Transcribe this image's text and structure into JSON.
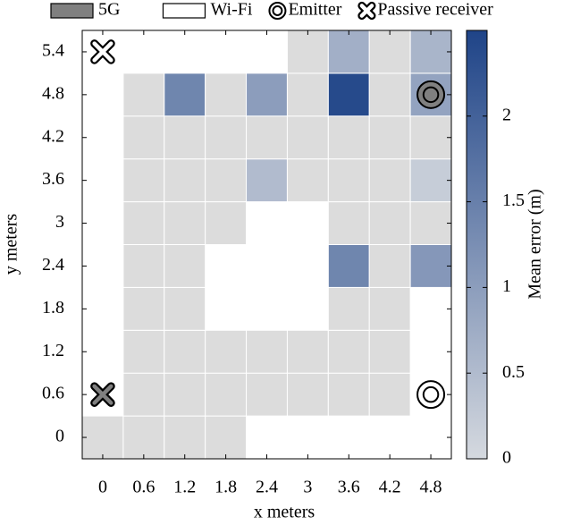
{
  "chart_data": {
    "type": "heatmap",
    "x": [
      0,
      0.6,
      1.2,
      1.8,
      2.4,
      3,
      3.6,
      4.2,
      4.8
    ],
    "y": [
      0,
      0.6,
      1.2,
      1.8,
      2.4,
      3,
      3.6,
      4.2,
      4.8,
      5.4
    ],
    "values": [
      [
        0,
        0,
        0,
        0,
        null,
        null,
        null,
        null,
        null
      ],
      [
        null,
        0,
        0,
        0,
        0,
        0,
        0,
        0,
        null
      ],
      [
        null,
        0,
        0,
        0,
        0,
        0,
        0,
        0,
        null
      ],
      [
        null,
        0,
        0,
        null,
        null,
        null,
        0,
        0,
        null
      ],
      [
        null,
        0,
        0,
        null,
        null,
        null,
        1.4,
        0,
        1.1
      ],
      [
        null,
        0,
        0,
        0,
        null,
        null,
        0,
        0,
        0
      ],
      [
        null,
        0,
        0,
        0,
        0.5,
        0,
        0,
        0,
        0.2
      ],
      [
        null,
        0,
        0,
        0,
        0,
        0,
        0,
        0,
        0
      ],
      [
        null,
        0,
        1.4,
        0,
        1.0,
        0,
        2.4,
        0,
        0.9
      ],
      [
        null,
        null,
        null,
        null,
        null,
        0,
        0.7,
        0,
        0.6
      ]
    ],
    "colormap": [
      "#d5d9df",
      "#1f4488"
    ],
    "xlabel": "x meters",
    "ylabel": "y meters",
    "xlim": [
      -0.3,
      5.1
    ],
    "ylim": [
      -0.3,
      5.7
    ],
    "xticks": [
      0,
      0.6,
      1.2,
      1.8,
      2.4,
      3,
      3.6,
      4.2,
      4.8
    ],
    "yticks": [
      0,
      0.6,
      1.2,
      1.8,
      2.4,
      3,
      3.6,
      4.2,
      4.8,
      5.4
    ],
    "clim": [
      0,
      2.5
    ],
    "cticks": [
      0,
      0.5,
      1,
      1.5,
      2
    ],
    "clabel": "Mean error (m)",
    "technologies": [
      {
        "name": "5G",
        "color": "#808080"
      },
      {
        "name": "Wi-Fi",
        "color": "#ffffff"
      }
    ],
    "symbols": [
      {
        "name": "Emitter",
        "points": [
          {
            "x": 4.8,
            "y": 4.8,
            "color": "#808080"
          },
          {
            "x": 4.8,
            "y": 0.6,
            "color": "#ffffff"
          }
        ]
      },
      {
        "name": "Passive receiver",
        "points": [
          {
            "x": 0,
            "y": 5.4,
            "color": "#ffffff"
          },
          {
            "x": 0,
            "y": 0.6,
            "color": "#808080"
          }
        ]
      }
    ]
  }
}
